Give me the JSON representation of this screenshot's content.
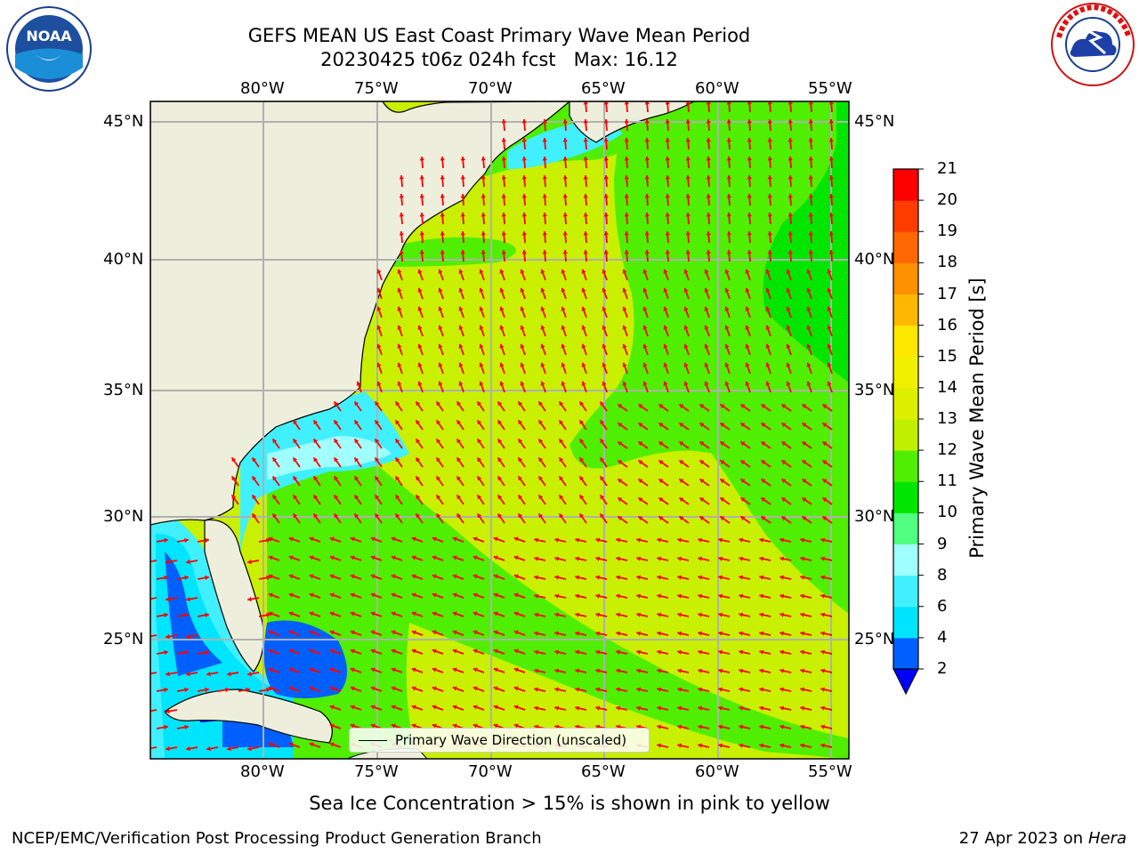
{
  "header": {
    "title_line1": "GEFS MEAN US East Coast Primary Wave Mean Period",
    "title_line2": "20230425 t06z 024h fcst   Max: 16.12"
  },
  "logos": {
    "left": {
      "text": "NOAA",
      "icon": "noaa-logo-icon"
    },
    "right": {
      "text": "NATIONAL WEATHER SERVICE",
      "icon": "nws-logo-icon"
    }
  },
  "map": {
    "lon_labels": [
      "80°W",
      "75°W",
      "70°W",
      "65°W",
      "60°W",
      "55°W"
    ],
    "lat_labels": [
      "45°N",
      "40°N",
      "35°N",
      "30°N",
      "25°N"
    ],
    "legend_label": "Primary Wave Direction (unscaled)",
    "arrow_color": "#ff0000",
    "land_color": "#eeeedc"
  },
  "colorbar": {
    "label": "Primary Wave Mean Period [s]",
    "ticks": [
      "2",
      "4",
      "6",
      "8",
      "9",
      "10",
      "11",
      "12",
      "13",
      "14",
      "15",
      "16",
      "17",
      "18",
      "19",
      "20",
      "21"
    ],
    "colors": [
      "#0060ff",
      "#00e5ff",
      "#40f0ff",
      "#a0ffff",
      "#50ff80",
      "#00e600",
      "#50ee00",
      "#c0f000",
      "#dcf000",
      "#f0f000",
      "#ffe800",
      "#ffb800",
      "#ff9000",
      "#ff6800",
      "#ff3c00",
      "#ff0000"
    ],
    "under_color": "#0000ff"
  },
  "footer": {
    "sea_ice_note": "Sea Ice Concentration > 15% is shown in pink to yellow",
    "branch": "NCEP/EMC/Verification Post Processing Product Generation Branch",
    "date": "27 Apr 2023 on",
    "machine": "Hera"
  }
}
